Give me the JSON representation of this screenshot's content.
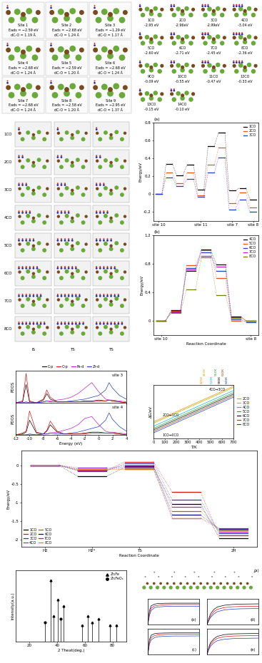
{
  "site_panel": {
    "sites": [
      {
        "label": "Site 1",
        "energy": "Eads = −2.59 eV",
        "distance": "dC-O = 1.19 Å"
      },
      {
        "label": "Site 2",
        "energy": "Eads = −2.68 eV",
        "distance": "dC-O = 1.24 Å"
      },
      {
        "label": "Site 3",
        "energy": "Eads = −1.29 eV",
        "distance": "dC-O = 1.17 Å"
      },
      {
        "label": "Site 4",
        "energy": "Eads = −2.68 eV",
        "distance": "dC-O = 1.24 Å"
      },
      {
        "label": "Site 5",
        "energy": "Eads = −2.59 eV",
        "distance": "dC-O = 1.20 Å"
      },
      {
        "label": "Site 6",
        "energy": "Eads = −2.68 eV",
        "distance": "dC-O = 1.24 Å"
      },
      {
        "label": "Site 7",
        "energy": "Eads = −2.68 eV",
        "distance": "dC-O = 1.24 Å"
      },
      {
        "label": "Site 8",
        "energy": "Eads = −2.58 eV",
        "distance": "dC-O = 1.20 Å"
      },
      {
        "label": "Site 9",
        "energy": "Eads = −2.95 eV",
        "distance": "dC-O = 1.37 Å"
      }
    ]
  },
  "co_panel": {
    "structures": [
      {
        "label": "1CO",
        "energy": "-2.95 eV"
      },
      {
        "label": "2CO",
        "energy": "-2.96eV"
      },
      {
        "label": "3CO",
        "energy": "-2.99eV"
      },
      {
        "label": "4CO",
        "energy": "-3.04 eV"
      },
      {
        "label": "5CO",
        "energy": "-2.60 eV"
      },
      {
        "label": "6CO",
        "energy": "-2.71 eV"
      },
      {
        "label": "7CO",
        "energy": "-2.45 eV"
      },
      {
        "label": "8CO",
        "energy": "-2.36 eV"
      },
      {
        "label": "9CO",
        "energy": "-0.09 eV"
      },
      {
        "label": "10CO",
        "energy": "-0.55 eV"
      },
      {
        "label": "11CO",
        "energy": "-0.47 eV"
      },
      {
        "label": "12CO",
        "energy": "-0.33 eV"
      },
      {
        "label": "13CO",
        "energy": "-0.15 eV"
      },
      {
        "label": "14CO",
        "energy": "-0.10 eV"
      }
    ]
  },
  "ts_panel": {
    "rows": [
      "1CO",
      "2CO",
      "3CO",
      "4CO",
      "5CO",
      "6CO",
      "7CO",
      "8CO"
    ],
    "columns": [
      "IS",
      "TS",
      "TS"
    ]
  },
  "absorption_schematic": {
    "label": "(a)"
  },
  "chart_data": [
    {
      "type": "levels",
      "title": "(a)",
      "y_label": "Energy/eV",
      "categories": [
        "site 10",
        null,
        null,
        null,
        "site 11",
        null,
        null,
        "site 7",
        null,
        "site 8"
      ],
      "series": [
        {
          "name": "1CO",
          "color": "#000000",
          "values": [
            0.0,
            0.34,
            0.21,
            0.33,
            0.05,
            0.54,
            0.69,
            0.04,
            0.07,
            -0.06
          ]
        },
        {
          "name": "2CO",
          "color": "#e8541c",
          "values": [
            0.0,
            0.24,
            0.12,
            0.24,
            -0.01,
            0.33,
            0.52,
            -0.1,
            0.02,
            -0.15
          ]
        },
        {
          "name": "3CO",
          "color": "#1f3fbf",
          "values": [
            0.0,
            0.19,
            0.09,
            0.17,
            -0.03,
            0.24,
            0.41,
            -0.17,
            -0.06,
            -0.2
          ]
        }
      ],
      "ylim": [
        -0.3,
        0.8
      ],
      "yticks": [
        -0.2,
        0,
        0.2,
        0.4,
        0.6,
        0.8
      ],
      "legend": "upper right"
    },
    {
      "type": "levels",
      "title": "(b)",
      "y_label": "Energy/eV",
      "x_label": "Reaction Coordinate",
      "categories": [
        "site 10",
        null,
        null,
        null,
        null,
        null,
        "site 8"
      ],
      "series": [
        {
          "name": "4CO",
          "color": "#000000",
          "values": [
            0.0,
            0.15,
            0.7,
            1.0,
            0.79,
            0.06,
            0.0
          ]
        },
        {
          "name": "5CO",
          "color": "#e8541c",
          "values": [
            0.0,
            0.14,
            0.78,
            0.99,
            0.6,
            0.0,
            0.0
          ]
        },
        {
          "name": "6CO",
          "color": "#1f3fbf",
          "values": [
            0.0,
            0.13,
            0.74,
            0.96,
            0.7,
            0.02,
            -0.02
          ]
        },
        {
          "name": "7CO",
          "color": "#c020c0",
          "values": [
            0.0,
            0.12,
            0.72,
            0.91,
            0.76,
            0.05,
            0.0
          ]
        },
        {
          "name": "8CO",
          "color": "#7a7a00",
          "values": [
            0.0,
            0.11,
            0.44,
            0.89,
            0.36,
            0.04,
            0.0
          ]
        }
      ],
      "ylim": [
        -0.2,
        1.2
      ],
      "yticks": [
        0,
        0.4,
        0.8,
        1.2
      ],
      "legend": "upper right"
    },
    {
      "type": "line",
      "y_label": "PDOS",
      "x": [
        -12,
        -11,
        -10.5,
        -10,
        -9,
        -8,
        -7.5,
        -7,
        -6,
        -5,
        -4,
        -3,
        -2,
        -1,
        0,
        1,
        1.5,
        2,
        3,
        4
      ],
      "series": [
        {
          "name": "C-p",
          "color": "#000000",
          "values": [
            0,
            0.1,
            2.0,
            0.1,
            0,
            0.3,
            1.0,
            0.4,
            0.1,
            0.1,
            0.1,
            0.1,
            0.2,
            0.2,
            0.3,
            0.2,
            0.3,
            0.2,
            0.1,
            0
          ]
        },
        {
          "name": "O-p",
          "color": "#e01010",
          "values": [
            0,
            0.2,
            3.2,
            0.2,
            0,
            0.4,
            1.4,
            0.6,
            0.1,
            0.1,
            0.1,
            0.1,
            0.1,
            0.1,
            0.2,
            0.2,
            0.3,
            0.2,
            0.1,
            0
          ]
        },
        {
          "name": "Fe-d",
          "color": "#c020c0",
          "values": [
            0,
            0,
            0,
            0,
            0,
            0.1,
            0.2,
            0.2,
            0.3,
            0.4,
            0.6,
            1.0,
            1.6,
            2.2,
            1.2,
            0.4,
            0.3,
            0.3,
            0.2,
            0.1
          ]
        },
        {
          "name": "Zr-d",
          "color": "#1f3fbf",
          "values": [
            0,
            0,
            0.1,
            0,
            0,
            0.1,
            0.2,
            0.1,
            0.1,
            0.1,
            0.2,
            0.3,
            0.4,
            0.6,
            0.8,
            1.4,
            2.2,
            1.6,
            0.8,
            0.4
          ]
        }
      ],
      "xlim": [
        -12,
        4
      ],
      "xticks": [
        -12,
        -10,
        -8,
        -6,
        -4,
        -2,
        0,
        2,
        4
      ],
      "ylim": [
        0,
        3.5
      ],
      "tick_labels": false,
      "legend": "top",
      "annotations": [
        {
          "text": "site 3"
        }
      ]
    },
    {
      "type": "line",
      "y_label": "PDOS",
      "x_label": "Energy (eV)",
      "x": [
        -12,
        -11,
        -10.5,
        -10,
        -9,
        -8,
        -7.5,
        -7,
        -6,
        -5,
        -4,
        -3,
        -2,
        -1,
        0,
        1,
        1.5,
        2,
        3,
        4
      ],
      "series": [
        {
          "color": "#000000",
          "values": [
            0,
            0.1,
            0.3,
            1.6,
            0.2,
            0.1,
            0.4,
            1.1,
            0.3,
            0.1,
            0.1,
            0.1,
            0.2,
            0.3,
            0.3,
            0.2,
            0.2,
            0.2,
            0.1,
            0
          ]
        },
        {
          "color": "#e01010",
          "values": [
            0,
            0.2,
            0.4,
            2.6,
            0.3,
            0.1,
            0.5,
            1.5,
            0.4,
            0.1,
            0.1,
            0.1,
            0.1,
            0.2,
            0.2,
            0.2,
            0.2,
            0.2,
            0.1,
            0
          ]
        },
        {
          "color": "#c020c0",
          "values": [
            0,
            0,
            0,
            0,
            0,
            0.1,
            0.1,
            0.2,
            0.3,
            0.5,
            0.7,
            1.1,
            1.8,
            2.0,
            1.1,
            0.4,
            0.3,
            0.3,
            0.2,
            0.1
          ]
        },
        {
          "color": "#1f3fbf",
          "values": [
            0,
            0,
            0,
            0.1,
            0,
            0.1,
            0.1,
            0.2,
            0.1,
            0.1,
            0.2,
            0.3,
            0.5,
            0.7,
            0.9,
            1.6,
            2.4,
            1.7,
            0.9,
            0.4
          ]
        }
      ],
      "xlim": [
        -12,
        4
      ],
      "xticks": [
        -12,
        -10,
        -8,
        -6,
        -4,
        -2,
        0,
        2,
        4
      ],
      "ylim": [
        0,
        3.5
      ],
      "tick_labels": "x",
      "annotations": [
        {
          "text": "site 4"
        }
      ]
    },
    {
      "type": "line",
      "x_label": "T/K",
      "y_label": "ΔG/eV",
      "x": [
        0,
        700
      ],
      "series": [
        {
          "name": "2CO",
          "color": "#ff8c00",
          "values": [
            -1.7,
            1.1
          ]
        },
        {
          "name": "3CO",
          "color": "#b5b500",
          "values": [
            -1.8,
            1.0
          ]
        },
        {
          "name": "4CO",
          "color": "#00bcd4",
          "values": [
            -2.04,
            0.76
          ]
        },
        {
          "name": "5CO",
          "color": "#2ca02c",
          "values": [
            -2.2,
            0.6
          ]
        },
        {
          "name": "6CO",
          "color": "#000000",
          "values": [
            -2.32,
            0.48
          ]
        },
        {
          "name": "7CO",
          "color": "#8b4513",
          "values": [
            -2.44,
            0.36
          ]
        },
        {
          "name": "8CO",
          "color": "#1f3fbf",
          "values": [
            -2.56,
            0.24
          ]
        }
      ],
      "xlim": [
        0,
        700
      ],
      "xticks": [
        0,
        100,
        200,
        300,
        400,
        500,
        600,
        700
      ],
      "ylim": [
        -3,
        1.2
      ],
      "tick_labels": "x",
      "legend": "right",
      "annotations": [
        {
          "text": "425K",
          "x": 425,
          "color": "#ff8c00"
        },
        {
          "text": "450K",
          "x": 450,
          "color": "#b5b500"
        },
        {
          "text": "510K",
          "x": 510,
          "color": "#00bcd4"
        },
        {
          "text": "550K",
          "x": 550,
          "color": "#2ca02c"
        },
        {
          "text": "580K",
          "x": 580,
          "color": "#000000"
        },
        {
          "text": "610K",
          "x": 610,
          "color": "#8b4513"
        },
        {
          "text": "640K",
          "x": 640,
          "color": "#1f3fbf"
        },
        {
          "text": "4CO→3CO",
          "x": 560,
          "y": 0.85
        },
        {
          "text": "2CO→1CO",
          "x": 150,
          "y": -1.2
        },
        {
          "text": "1CO→0CO",
          "x": 150,
          "y": -2.75
        }
      ]
    },
    {
      "type": "levels",
      "x_label": "Reaction Coordinate",
      "y_label": "Energy/eV",
      "categories": [
        "H2",
        "H2*",
        "TS",
        null,
        "2H"
      ],
      "series": [
        {
          "name": "1CO",
          "color": "#000000",
          "values": [
            0.0,
            -0.3,
            -0.05,
            -1.04,
            -1.96
          ]
        },
        {
          "name": "2CO",
          "color": "#e01010",
          "values": [
            0.0,
            -0.14,
            0.1,
            -0.72,
            -1.9
          ]
        },
        {
          "name": "3CO",
          "color": "#1f3fbf",
          "values": [
            0.0,
            -0.15,
            0.05,
            -0.93,
            -1.83
          ]
        },
        {
          "name": "4CO",
          "color": "#c020c0",
          "values": [
            0.0,
            -0.13,
            -0.03,
            -1.13,
            -1.79
          ]
        },
        {
          "name": "5CO",
          "color": "#7a7a00",
          "values": [
            0.0,
            -0.12,
            -0.11,
            -1.24,
            -1.76
          ]
        },
        {
          "name": "6CO",
          "color": "#000080",
          "values": [
            0.0,
            -0.1,
            0.0,
            -1.34,
            -1.72
          ]
        },
        {
          "name": "7CO",
          "color": "#7b2fbf",
          "values": [
            0.0,
            -0.06,
            -0.08,
            -1.42,
            -1.69
          ]
        },
        {
          "name": "8CO",
          "color": "#e8841c",
          "values": [
            0.0,
            -0.1,
            -0.1,
            -1.43,
            -1.74
          ]
        }
      ],
      "ylim": [
        -2.2,
        0.4
      ],
      "yticks": [
        -2,
        -1.5,
        -1,
        -0.5,
        0
      ],
      "legend": "lower left"
    },
    {
      "type": "stem",
      "x_label": "2 Theat(deg.)",
      "y_label": "Intensity(a.u.)",
      "series": [
        {
          "name": "Zr₂Fe",
          "marker": "triangle",
          "color": "#000000",
          "x": [
            35.5,
            37.5,
            40.5,
            44.5,
            58,
            62,
            65,
            70,
            78,
            83
          ],
          "values": [
            95,
            40,
            65,
            55,
            25,
            40,
            30,
            35,
            25,
            25
          ]
        },
        {
          "name": "Zr₂FeOₓ",
          "marker": "circle",
          "color": "#000000",
          "x": [
            31,
            42.5
          ],
          "values": [
            30,
            35
          ]
        }
      ],
      "xlim": [
        10,
        90
      ],
      "xticks": [
        20,
        40,
        60,
        80
      ],
      "ylim": [
        0,
        110
      ],
      "tick_labels": "x",
      "legend": "upper right"
    },
    {
      "type": "line",
      "title": "(b)",
      "x": [
        0,
        10,
        20,
        40,
        60,
        100,
        150,
        200,
        300
      ],
      "series": [
        {
          "color": "#000000",
          "values": [
            0,
            1.2,
            1.6,
            1.75,
            1.8,
            1.82,
            1.83,
            1.83,
            1.83
          ]
        },
        {
          "color": "#e01010",
          "values": [
            0,
            1.0,
            1.4,
            1.6,
            1.65,
            1.7,
            1.72,
            1.72,
            1.72
          ]
        },
        {
          "color": "#1f3fbf",
          "values": [
            0,
            0.8,
            1.2,
            1.45,
            1.5,
            1.55,
            1.56,
            1.57,
            1.57
          ]
        }
      ],
      "xlim": [
        0,
        300
      ],
      "ylim": [
        0,
        2.2
      ],
      "tick_labels": false
    },
    {
      "type": "line",
      "title": "(d)",
      "x": [
        0,
        10,
        20,
        40,
        60,
        100,
        150,
        200,
        300
      ],
      "series": [
        {
          "color": "#000000",
          "values": [
            0,
            0.5,
            0.9,
            1.3,
            1.5,
            1.65,
            1.72,
            1.75,
            1.77
          ]
        },
        {
          "color": "#e01010",
          "values": [
            0,
            0.4,
            0.7,
            1.1,
            1.3,
            1.45,
            1.52,
            1.55,
            1.57
          ]
        },
        {
          "color": "#1f3fbf",
          "values": [
            0,
            0.3,
            0.6,
            0.9,
            1.1,
            1.25,
            1.32,
            1.35,
            1.37
          ]
        }
      ],
      "xlim": [
        0,
        300
      ],
      "ylim": [
        0,
        2.2
      ],
      "tick_labels": false
    },
    {
      "type": "line",
      "title": "(c)",
      "x": [
        0,
        10,
        20,
        40,
        60,
        100,
        150,
        200,
        300
      ],
      "series": [
        {
          "color": "#000000",
          "values": [
            0,
            1.3,
            1.65,
            1.78,
            1.82,
            1.84,
            1.85,
            1.85,
            1.85
          ]
        },
        {
          "color": "#e01010",
          "values": [
            0,
            1.1,
            1.45,
            1.62,
            1.68,
            1.72,
            1.73,
            1.74,
            1.74
          ]
        },
        {
          "color": "#1f3fbf",
          "values": [
            0,
            0.9,
            1.25,
            1.45,
            1.52,
            1.56,
            1.58,
            1.58,
            1.59
          ]
        }
      ],
      "xlim": [
        0,
        300
      ],
      "ylim": [
        0,
        2.2
      ],
      "tick_labels": false
    },
    {
      "type": "line",
      "title": "(e)",
      "x": [
        0,
        10,
        20,
        40,
        60,
        100,
        150,
        200,
        300
      ],
      "series": [
        {
          "color": "#000000",
          "values": [
            0,
            0.6,
            1.0,
            1.35,
            1.55,
            1.7,
            1.76,
            1.78,
            1.8
          ]
        },
        {
          "color": "#e01010",
          "values": [
            0,
            0.5,
            0.85,
            1.2,
            1.38,
            1.52,
            1.58,
            1.6,
            1.62
          ]
        },
        {
          "color": "#1f3fbf",
          "values": [
            0,
            0.4,
            0.7,
            1.0,
            1.18,
            1.3,
            1.36,
            1.38,
            1.4
          ]
        }
      ],
      "xlim": [
        0,
        300
      ],
      "ylim": [
        0,
        2.2
      ],
      "tick_labels": false
    }
  ]
}
